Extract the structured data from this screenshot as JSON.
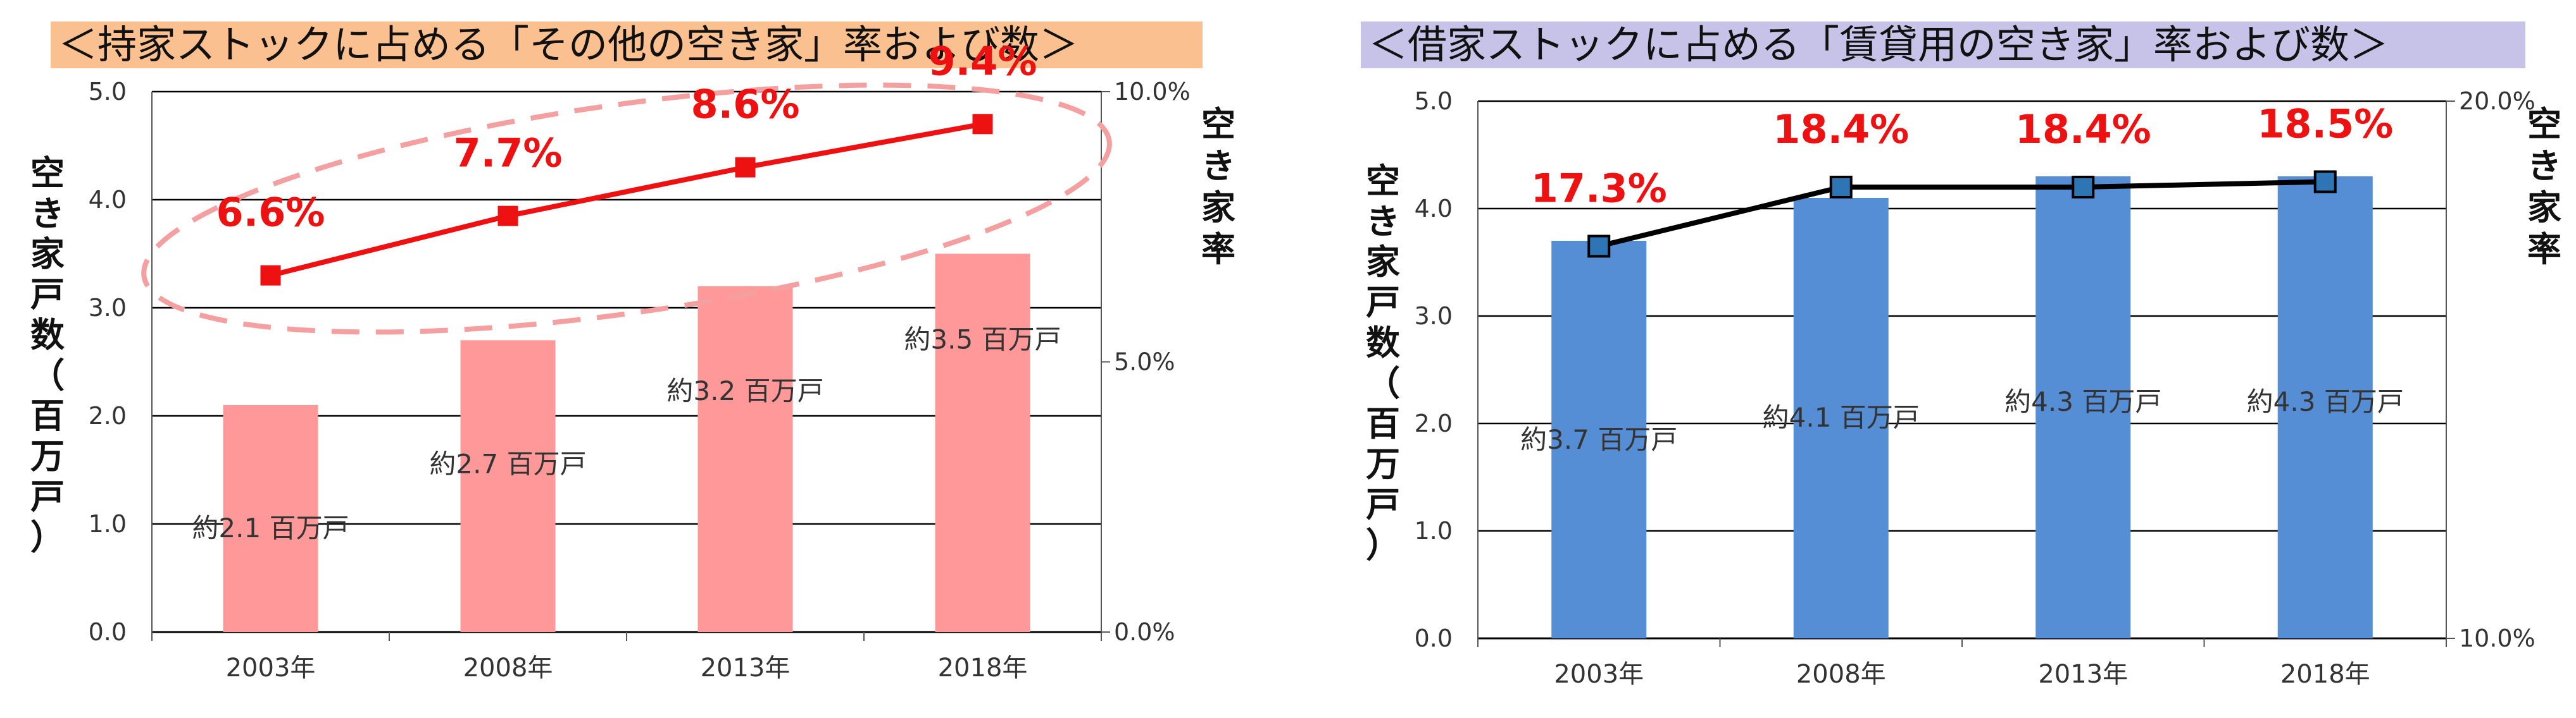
{
  "charts": [
    {
      "title": "＜持家ストックに占める「その他の空き家」率および数＞",
      "y_left_label": [
        "空",
        "き",
        "家",
        "戸",
        "数",
        "（",
        "百",
        "万",
        "戸",
        "）"
      ],
      "y_right_label": [
        "空",
        "き",
        "家",
        "率"
      ],
      "colors": {
        "bar": "#ff9999",
        "line": "#ee1111",
        "marker": "#ee1111",
        "value_label": "#ee1111",
        "title_bg": "#fac090"
      },
      "ellipse_highlight": true
    },
    {
      "title": "＜借家ストックに占める「賃貸用の空き家」率および数＞",
      "y_left_label": [
        "空",
        "き",
        "家",
        "戸",
        "数",
        "（",
        "百",
        "万",
        "戸",
        "）"
      ],
      "y_right_label": [
        "空",
        "き",
        "家",
        "率"
      ],
      "colors": {
        "bar": "#558ed5",
        "line": "#000000",
        "marker": "#2e75b6",
        "value_label": "#ee1111",
        "title_bg": "#c7c3e8"
      },
      "ellipse_highlight": false
    }
  ],
  "chart_data": [
    {
      "type": "bar",
      "title": "＜持家ストックに占める「その他の空き家」率および数＞",
      "categories": [
        "2003年",
        "2008年",
        "2013年",
        "2018年"
      ],
      "series": [
        {
          "name": "",
          "type": "bar",
          "axis": "left",
          "values": [
            2.1,
            2.7,
            3.2,
            3.5
          ],
          "labels": [
            "約2.1 百万戸",
            "約2.7 百万戸",
            "約3.2 百万戸",
            "約3.5 百万戸"
          ]
        },
        {
          "name": "",
          "type": "line",
          "axis": "right",
          "values": [
            6.6,
            7.7,
            8.6,
            9.4
          ],
          "labels": [
            "6.6%",
            "7.7%",
            "8.6%",
            "9.4%"
          ]
        }
      ],
      "ylabel": "空き家戸数（百万戸）",
      "y2label": "空き家率",
      "ylim": [
        0,
        5
      ],
      "yticks": [
        "0.0",
        "1.0",
        "2.0",
        "3.0",
        "4.0",
        "5.0"
      ],
      "y2lim": [
        0,
        10
      ],
      "y2ticks": [
        "0.0%",
        "5.0%",
        "10.0%"
      ],
      "grid": true
    },
    {
      "type": "bar",
      "title": "＜借家ストックに占める「賃貸用の空き家」率および数＞",
      "categories": [
        "2003年",
        "2008年",
        "2013年",
        "2018年"
      ],
      "series": [
        {
          "name": "",
          "type": "bar",
          "axis": "left",
          "values": [
            3.7,
            4.1,
            4.3,
            4.3
          ],
          "labels": [
            "約3.7 百万戸",
            "約4.1 百万戸",
            "約4.3 百万戸",
            "約4.3 百万戸"
          ]
        },
        {
          "name": "",
          "type": "line",
          "axis": "right",
          "values": [
            17.3,
            18.4,
            18.4,
            18.5
          ],
          "labels": [
            "17.3%",
            "18.4%",
            "18.4%",
            "18.5%"
          ]
        }
      ],
      "ylabel": "空き家戸数（百万戸）",
      "y2label": "空き家率",
      "ylim": [
        0,
        5
      ],
      "yticks": [
        "0.0",
        "1.0",
        "2.0",
        "3.0",
        "4.0",
        "5.0"
      ],
      "y2lim": [
        10,
        20
      ],
      "y2ticks": [
        "10.0%",
        "20.0%"
      ],
      "grid": true
    }
  ]
}
